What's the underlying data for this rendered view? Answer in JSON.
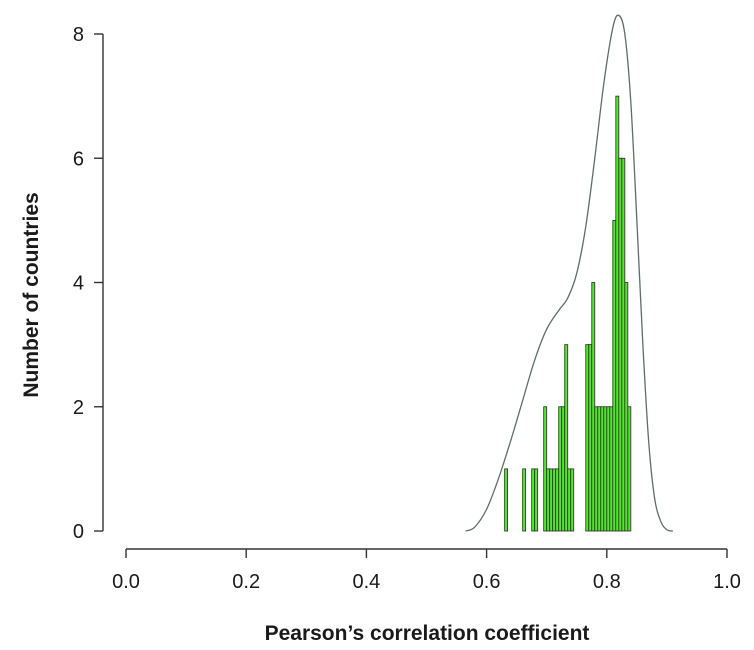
{
  "chart_data": {
    "type": "bar",
    "title": "",
    "xlabel": "Pearson’s correlation coefficient",
    "ylabel": "Number of countries",
    "xlim": [
      0.0,
      1.0
    ],
    "ylim": [
      0,
      8
    ],
    "xticks": [
      "0.0",
      "0.2",
      "0.4",
      "0.6",
      "0.8",
      "1.0"
    ],
    "yticks": [
      "0",
      "2",
      "4",
      "6",
      "8"
    ],
    "bin_width": 0.005,
    "bins": [
      {
        "x0": 0.63,
        "count": 1
      },
      {
        "x0": 0.66,
        "count": 1
      },
      {
        "x0": 0.675,
        "count": 1
      },
      {
        "x0": 0.68,
        "count": 1
      },
      {
        "x0": 0.695,
        "count": 2
      },
      {
        "x0": 0.7,
        "count": 1
      },
      {
        "x0": 0.705,
        "count": 1
      },
      {
        "x0": 0.71,
        "count": 1
      },
      {
        "x0": 0.715,
        "count": 1
      },
      {
        "x0": 0.72,
        "count": 2
      },
      {
        "x0": 0.725,
        "count": 2
      },
      {
        "x0": 0.73,
        "count": 3
      },
      {
        "x0": 0.735,
        "count": 1
      },
      {
        "x0": 0.74,
        "count": 1
      },
      {
        "x0": 0.765,
        "count": 3
      },
      {
        "x0": 0.77,
        "count": 3
      },
      {
        "x0": 0.775,
        "count": 4
      },
      {
        "x0": 0.78,
        "count": 2
      },
      {
        "x0": 0.785,
        "count": 2
      },
      {
        "x0": 0.79,
        "count": 2
      },
      {
        "x0": 0.795,
        "count": 2
      },
      {
        "x0": 0.8,
        "count": 2
      },
      {
        "x0": 0.805,
        "count": 2
      },
      {
        "x0": 0.81,
        "count": 5
      },
      {
        "x0": 0.815,
        "count": 7
      },
      {
        "x0": 0.82,
        "count": 6
      },
      {
        "x0": 0.825,
        "count": 6
      },
      {
        "x0": 0.83,
        "count": 4
      },
      {
        "x0": 0.835,
        "count": 2
      }
    ],
    "density_curve": [
      [
        0.565,
        0.0
      ],
      [
        0.58,
        0.06
      ],
      [
        0.6,
        0.35
      ],
      [
        0.62,
        0.85
      ],
      [
        0.64,
        1.45
      ],
      [
        0.66,
        2.1
      ],
      [
        0.68,
        2.75
      ],
      [
        0.7,
        3.25
      ],
      [
        0.72,
        3.55
      ],
      [
        0.735,
        3.75
      ],
      [
        0.75,
        4.15
      ],
      [
        0.765,
        4.9
      ],
      [
        0.78,
        6.0
      ],
      [
        0.795,
        7.2
      ],
      [
        0.81,
        8.1
      ],
      [
        0.82,
        8.3
      ],
      [
        0.83,
        8.0
      ],
      [
        0.84,
        6.9
      ],
      [
        0.85,
        5.0
      ],
      [
        0.86,
        3.0
      ],
      [
        0.87,
        1.4
      ],
      [
        0.88,
        0.5
      ],
      [
        0.89,
        0.15
      ],
      [
        0.9,
        0.02
      ],
      [
        0.91,
        0.0
      ]
    ],
    "colors": {
      "bar_fill": "#52e82c",
      "bar_stroke": "#2b2b2b",
      "curve": "#5d6e66",
      "axis": "#333333"
    }
  }
}
